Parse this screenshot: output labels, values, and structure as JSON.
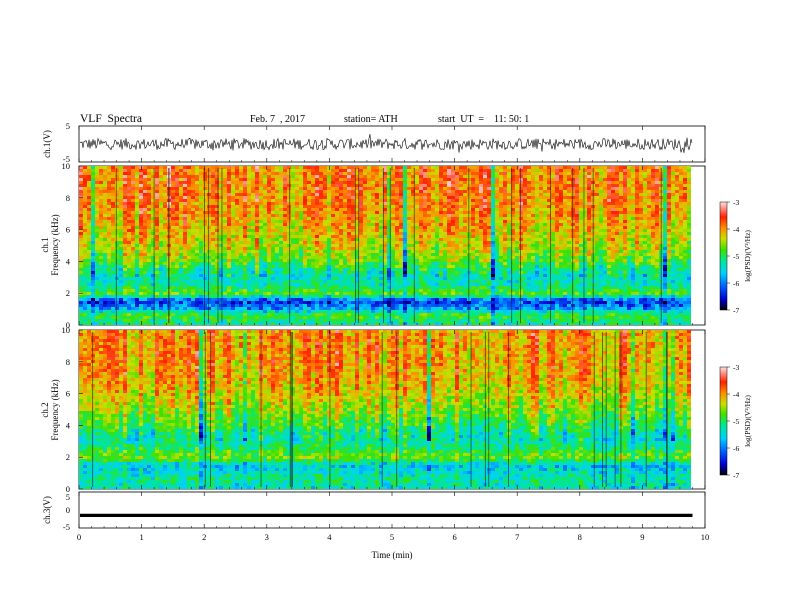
{
  "header": {
    "title": "VLF  Spectra",
    "date": "Feb. 7  , 2017",
    "station": "station= ATH",
    "start": "start  UT  =    11: 50: 1"
  },
  "chart_data": [
    {
      "id": "ch1-waveform",
      "type": "line",
      "ylabel": "ch.1(V)",
      "ylim": [
        -5,
        5
      ],
      "yticks": [
        "5",
        "-5"
      ],
      "xlim": [
        0,
        10
      ],
      "description_of_signal": "noisy trace fluctuating roughly between -2 and 2 V",
      "x_end": 9.8
    },
    {
      "id": "ch1-spectrogram",
      "type": "heatmap",
      "ylabel": "Frequency  (kHz)",
      "panel_label": "ch.1",
      "ylim": [
        0,
        10
      ],
      "yticks": [
        "0",
        "2",
        "4",
        "6",
        "8",
        "10"
      ],
      "xlim": [
        0,
        10
      ],
      "x_end": 9.8,
      "band_profile_log_psd": [
        {
          "f": 0.2,
          "v": -5.2
        },
        {
          "f": 0.6,
          "v": -4.8
        },
        {
          "f": 1.0,
          "v": -5.8
        },
        {
          "f": 1.5,
          "v": -6.3
        },
        {
          "f": 2.0,
          "v": -4.7
        },
        {
          "f": 2.5,
          "v": -5.3
        },
        {
          "f": 3.0,
          "v": -5.4
        },
        {
          "f": 3.5,
          "v": -5.1
        },
        {
          "f": 4.0,
          "v": -4.7
        },
        {
          "f": 5.0,
          "v": -4.3
        },
        {
          "f": 6.0,
          "v": -4.1
        },
        {
          "f": 7.0,
          "v": -3.9
        },
        {
          "f": 8.0,
          "v": -3.8
        },
        {
          "f": 9.0,
          "v": -3.8
        },
        {
          "f": 10.0,
          "v": -3.8
        }
      ],
      "colorbar": {
        "label": "log(PSD)(V²/Hz)",
        "ticks": [
          "-3",
          "-4",
          "-5",
          "-6",
          "-7"
        ],
        "range": [
          -7,
          -3
        ]
      }
    },
    {
      "id": "ch2-spectrogram",
      "type": "heatmap",
      "ylabel": "Frequency  (kHz)",
      "panel_label": "ch.2",
      "ylim": [
        0,
        10
      ],
      "yticks": [
        "0",
        "2",
        "4",
        "6",
        "8",
        "10"
      ],
      "xlim": [
        0,
        10
      ],
      "x_end": 9.8,
      "band_profile_log_psd": [
        {
          "f": 0.2,
          "v": -5.4
        },
        {
          "f": 0.6,
          "v": -5.2
        },
        {
          "f": 1.0,
          "v": -5.4
        },
        {
          "f": 1.5,
          "v": -5.6
        },
        {
          "f": 2.0,
          "v": -4.6
        },
        {
          "f": 2.5,
          "v": -5.0
        },
        {
          "f": 3.0,
          "v": -5.3
        },
        {
          "f": 3.5,
          "v": -5.2
        },
        {
          "f": 4.0,
          "v": -4.9
        },
        {
          "f": 5.0,
          "v": -4.5
        },
        {
          "f": 6.0,
          "v": -4.2
        },
        {
          "f": 7.0,
          "v": -4.0
        },
        {
          "f": 8.0,
          "v": -3.9
        },
        {
          "f": 9.0,
          "v": -3.9
        },
        {
          "f": 10.0,
          "v": -3.9
        }
      ],
      "colorbar": {
        "label": "log(PSD)(V²/Hz)",
        "ticks": [
          "-3",
          "-4",
          "-5",
          "-6",
          "-7"
        ],
        "range": [
          -7,
          -3
        ]
      }
    },
    {
      "id": "ch3-waveform",
      "type": "line",
      "ylabel": "ch.3(V)",
      "ylim": [
        -5,
        5
      ],
      "yticks": [
        "5",
        "0",
        "-5"
      ],
      "xlim": [
        0,
        10
      ],
      "xticks": [
        "0",
        "1",
        "2",
        "3",
        "4",
        "5",
        "6",
        "7",
        "8",
        "9",
        "10"
      ],
      "xlabel": "Time  (min)",
      "level_v": -1.5,
      "x_end": 9.8
    }
  ],
  "colors": {
    "colormap": [
      "#000000",
      "#0000d0",
      "#0060ff",
      "#00d0ff",
      "#00e890",
      "#40e000",
      "#c8e000",
      "#ff8c00",
      "#ff2000",
      "#ffe0e0"
    ]
  }
}
